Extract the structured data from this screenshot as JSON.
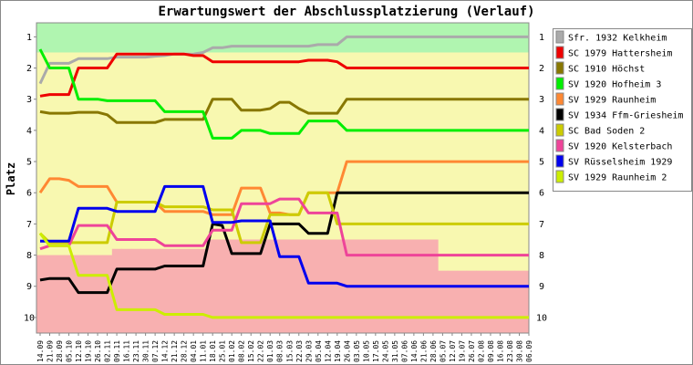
{
  "chart_data": {
    "type": "line",
    "title": "Erwartungswert der Abschlussplatzierung (Verlauf)",
    "ylabel": "Platz",
    "x": [
      "14.09",
      "21.09",
      "28.09",
      "05.10",
      "12.10",
      "19.10",
      "26.10",
      "02.11",
      "09.11",
      "16.11",
      "23.11",
      "30.11",
      "07.12",
      "14.12",
      "21.12",
      "28.12",
      "04.01",
      "11.01",
      "18.01",
      "25.01",
      "01.02",
      "08.02",
      "15.02",
      "22.02",
      "01.03",
      "08.03",
      "15.03",
      "22.03",
      "29.03",
      "05.04",
      "12.04",
      "19.04",
      "26.04",
      "03.05",
      "10.05",
      "17.05",
      "24.05",
      "31.05",
      "07.06",
      "14.06",
      "21.06",
      "28.06",
      "05.07",
      "12.07",
      "19.07",
      "26.07",
      "02.08",
      "09.08",
      "16.08",
      "23.08",
      "30.08",
      "06.09"
    ],
    "ylim": [
      0.55,
      10.5
    ],
    "y_inverted": true,
    "yticks": [
      1,
      2,
      3,
      4,
      5,
      6,
      7,
      8,
      9,
      10
    ],
    "promotion_zone_bottom": 1.5,
    "relegation_zone_top": [
      8,
      8,
      8,
      8,
      8,
      8,
      8,
      8,
      7.8,
      7.8,
      7.8,
      7.8,
      7.8,
      7.8,
      7.8,
      7.8,
      7.8,
      7.8,
      7.5,
      7.5,
      7.5,
      7.5,
      7.5,
      7.5,
      7.5,
      7.5,
      7.5,
      7.5,
      7.5,
      7.5,
      7.5,
      7.5,
      7.5,
      7.5,
      7.5,
      7.5,
      7.5,
      7.5,
      7.5,
      7.5,
      7.5,
      7.5,
      8.5,
      8.5,
      8.5,
      8.5,
      8.5,
      8.5,
      8.5,
      8.5,
      8.5,
      8.5
    ],
    "zone_colors": {
      "promotion": "#b0f5b0",
      "middle": "#f8f8b0",
      "relegation": "#f8b0b0"
    },
    "series": [
      {
        "name": "Sfr. 1932 Kelkheim",
        "color": "#aaaaaa",
        "values": [
          2.5,
          1.85,
          1.85,
          1.85,
          1.7,
          1.7,
          1.7,
          1.7,
          1.65,
          1.65,
          1.65,
          1.65,
          1.62,
          1.6,
          1.55,
          1.55,
          1.55,
          1.5,
          1.35,
          1.35,
          1.3,
          1.3,
          1.3,
          1.3,
          1.3,
          1.3,
          1.3,
          1.3,
          1.3,
          1.25,
          1.25,
          1.25,
          1,
          1,
          1,
          1,
          1,
          1,
          1,
          1,
          1,
          1,
          1,
          1,
          1,
          1,
          1,
          1,
          1,
          1,
          1,
          1
        ]
      },
      {
        "name": "SC 1979 Hattersheim",
        "color": "#ee0000",
        "values": [
          2.9,
          2.85,
          2.85,
          2.85,
          2,
          2,
          2,
          2,
          1.55,
          1.55,
          1.55,
          1.55,
          1.55,
          1.55,
          1.55,
          1.55,
          1.6,
          1.6,
          1.8,
          1.8,
          1.8,
          1.8,
          1.8,
          1.8,
          1.8,
          1.8,
          1.8,
          1.8,
          1.75,
          1.75,
          1.75,
          1.8,
          2,
          2,
          2,
          2,
          2,
          2,
          2,
          2,
          2,
          2,
          2,
          2,
          2,
          2,
          2,
          2,
          2,
          2,
          2,
          2
        ]
      },
      {
        "name": "SC 1910 Höchst",
        "color": "#887700",
        "values": [
          3.4,
          3.45,
          3.45,
          3.45,
          3.42,
          3.42,
          3.42,
          3.5,
          3.75,
          3.75,
          3.75,
          3.75,
          3.75,
          3.65,
          3.65,
          3.65,
          3.65,
          3.65,
          3,
          3,
          3,
          3.35,
          3.35,
          3.35,
          3.3,
          3.1,
          3.1,
          3.3,
          3.45,
          3.45,
          3.45,
          3.45,
          3,
          3,
          3,
          3,
          3,
          3,
          3,
          3,
          3,
          3,
          3,
          3,
          3,
          3,
          3,
          3,
          3,
          3,
          3,
          3
        ]
      },
      {
        "name": "SV 1920 Hofheim 3",
        "color": "#00ee00",
        "values": [
          1.4,
          2,
          2,
          2,
          3,
          3,
          3,
          3.05,
          3.05,
          3.05,
          3.05,
          3.05,
          3.05,
          3.4,
          3.4,
          3.4,
          3.4,
          3.4,
          4.25,
          4.25,
          4.25,
          4,
          4,
          4,
          4.1,
          4.1,
          4.1,
          4.1,
          3.7,
          3.7,
          3.7,
          3.7,
          4,
          4,
          4,
          4,
          4,
          4,
          4,
          4,
          4,
          4,
          4,
          4,
          4,
          4,
          4,
          4,
          4,
          4,
          4,
          4
        ]
      },
      {
        "name": "SV 1929 Raunheim",
        "color": "#ff8833",
        "values": [
          6,
          5.55,
          5.55,
          5.6,
          5.8,
          5.8,
          5.8,
          5.8,
          6.3,
          6.3,
          6.3,
          6.3,
          6.3,
          6.6,
          6.6,
          6.6,
          6.6,
          6.6,
          6.7,
          6.7,
          6.7,
          5.85,
          5.85,
          5.85,
          6.65,
          6.65,
          6.7,
          6.7,
          6,
          6,
          6,
          6,
          5,
          5,
          5,
          5,
          5,
          5,
          5,
          5,
          5,
          5,
          5,
          5,
          5,
          5,
          5,
          5,
          5,
          5,
          5,
          5
        ]
      },
      {
        "name": "SV 1934 Ffm-Griesheim",
        "color": "#000000",
        "values": [
          8.8,
          8.75,
          8.75,
          8.75,
          9.2,
          9.2,
          9.2,
          9.2,
          8.45,
          8.45,
          8.45,
          8.45,
          8.45,
          8.35,
          8.35,
          8.35,
          8.35,
          8.35,
          7,
          7.05,
          7.95,
          7.95,
          7.95,
          7.95,
          7,
          7,
          7,
          7,
          7.3,
          7.3,
          7.3,
          6,
          6,
          6,
          6,
          6,
          6,
          6,
          6,
          6,
          6,
          6,
          6,
          6,
          6,
          6,
          6,
          6,
          6,
          6,
          6,
          6
        ]
      },
      {
        "name": "SC Bad Soden 2",
        "color": "#cccc00",
        "values": [
          7.3,
          7.6,
          7.6,
          7.6,
          7.6,
          7.6,
          7.6,
          7.6,
          6.3,
          6.3,
          6.3,
          6.3,
          6.3,
          6.45,
          6.45,
          6.45,
          6.45,
          6.45,
          6.55,
          6.55,
          6.55,
          7.6,
          7.6,
          7.6,
          6.7,
          6.7,
          6.7,
          6.7,
          6,
          6,
          6,
          7,
          7,
          7,
          7,
          7,
          7,
          7,
          7,
          7,
          7,
          7,
          7,
          7,
          7,
          7,
          7,
          7,
          7,
          7,
          7,
          7
        ]
      },
      {
        "name": "SV 1920 Kelsterbach",
        "color": "#ee4499",
        "values": [
          7.8,
          7.7,
          7.7,
          7.7,
          7.05,
          7.05,
          7.05,
          7.05,
          7.5,
          7.5,
          7.5,
          7.5,
          7.5,
          7.7,
          7.7,
          7.7,
          7.7,
          7.7,
          7.2,
          7.2,
          7.2,
          6.35,
          6.35,
          6.35,
          6.35,
          6.2,
          6.2,
          6.2,
          6.65,
          6.65,
          6.65,
          6.65,
          8,
          8,
          8,
          8,
          8,
          8,
          8,
          8,
          8,
          8,
          8,
          8,
          8,
          8,
          8,
          8,
          8,
          8,
          8,
          8
        ]
      },
      {
        "name": "SV Rüsselsheim 1929",
        "color": "#0000ee",
        "values": [
          7.55,
          7.55,
          7.55,
          7.55,
          6.5,
          6.5,
          6.5,
          6.5,
          6.6,
          6.6,
          6.6,
          6.6,
          6.6,
          5.8,
          5.8,
          5.8,
          5.8,
          5.8,
          6.95,
          6.95,
          6.95,
          6.9,
          6.9,
          6.9,
          6.9,
          8.05,
          8.05,
          8.05,
          8.9,
          8.9,
          8.9,
          8.9,
          9,
          9,
          9,
          9,
          9,
          9,
          9,
          9,
          9,
          9,
          9,
          9,
          9,
          9,
          9,
          9,
          9,
          9,
          9,
          9
        ]
      },
      {
        "name": "SV 1929 Raunheim 2",
        "color": "#ccee00",
        "values": [
          7.3,
          7.7,
          7.7,
          7.7,
          8.65,
          8.65,
          8.65,
          8.65,
          9.75,
          9.75,
          9.75,
          9.75,
          9.75,
          9.9,
          9.9,
          9.9,
          9.9,
          9.9,
          10,
          10,
          10,
          10,
          10,
          10,
          10,
          10,
          10,
          10,
          10,
          10,
          10,
          10,
          10,
          10,
          10,
          10,
          10,
          10,
          10,
          10,
          10,
          10,
          10,
          10,
          10,
          10,
          10,
          10,
          10,
          10,
          10,
          10
        ]
      }
    ]
  }
}
